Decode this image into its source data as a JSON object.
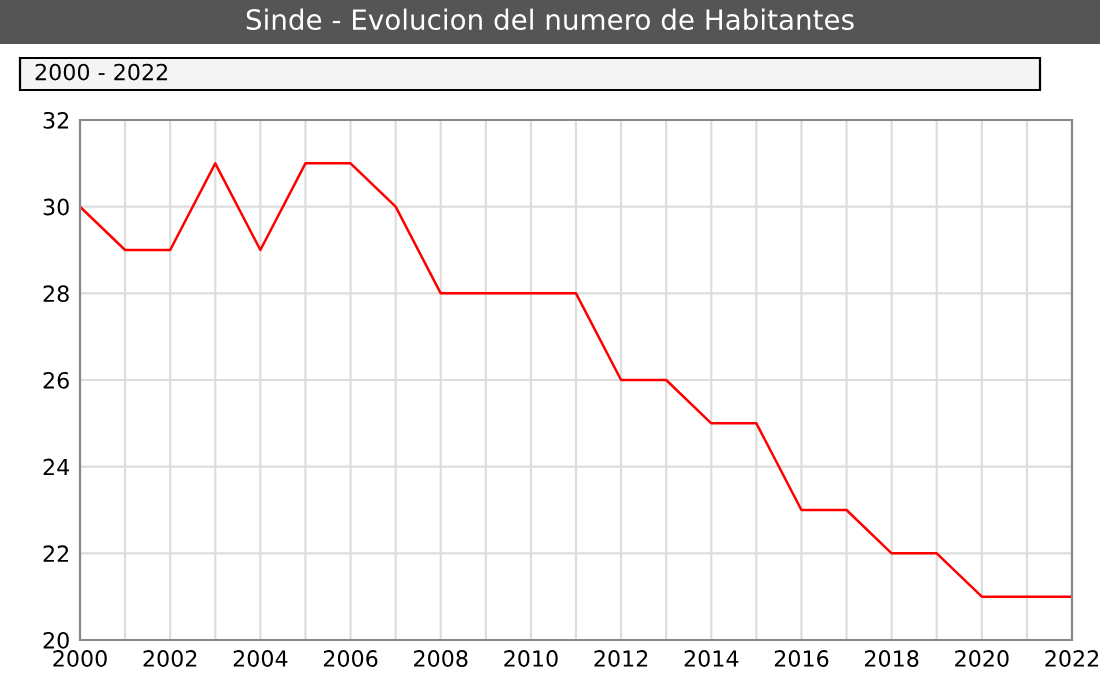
{
  "chart_data": {
    "type": "line",
    "title": "Sinde - Evolucion del numero de Habitantes",
    "annotations": [
      "2000 - 2022"
    ],
    "x": [
      2000,
      2001,
      2002,
      2003,
      2004,
      2005,
      2006,
      2007,
      2008,
      2009,
      2010,
      2011,
      2012,
      2013,
      2014,
      2015,
      2016,
      2017,
      2018,
      2019,
      2020,
      2021,
      2022
    ],
    "series": [
      {
        "color": "#ff0000",
        "values": [
          30,
          29,
          29,
          31,
          29,
          31,
          31,
          30,
          28,
          28,
          28,
          28,
          26,
          26,
          25,
          25,
          23,
          23,
          22,
          22,
          21,
          21,
          21
        ]
      }
    ],
    "xlim": [
      2000,
      2022
    ],
    "xticks": [
      2000,
      {
        "value": 2001,
        "label": null
      },
      2002,
      {
        "value": 2003,
        "label": null
      },
      2004,
      {
        "value": 2005,
        "label": null
      },
      2006,
      {
        "value": 2007,
        "label": null
      },
      2008,
      {
        "value": 2009,
        "label": null
      },
      2010,
      {
        "value": 2011,
        "label": null
      },
      2012,
      {
        "value": 2013,
        "label": null
      },
      2014,
      {
        "value": 2015,
        "label": null
      },
      2016,
      {
        "value": 2017,
        "label": null
      },
      2018,
      {
        "value": 2019,
        "label": null
      },
      2020,
      {
        "value": 2021,
        "label": null
      },
      2022
    ],
    "ylim": [
      20,
      32
    ],
    "yticks": [
      20,
      22,
      24,
      26,
      28,
      30,
      32
    ],
    "grid": true,
    "marker": "none",
    "line_style": "solid"
  }
}
